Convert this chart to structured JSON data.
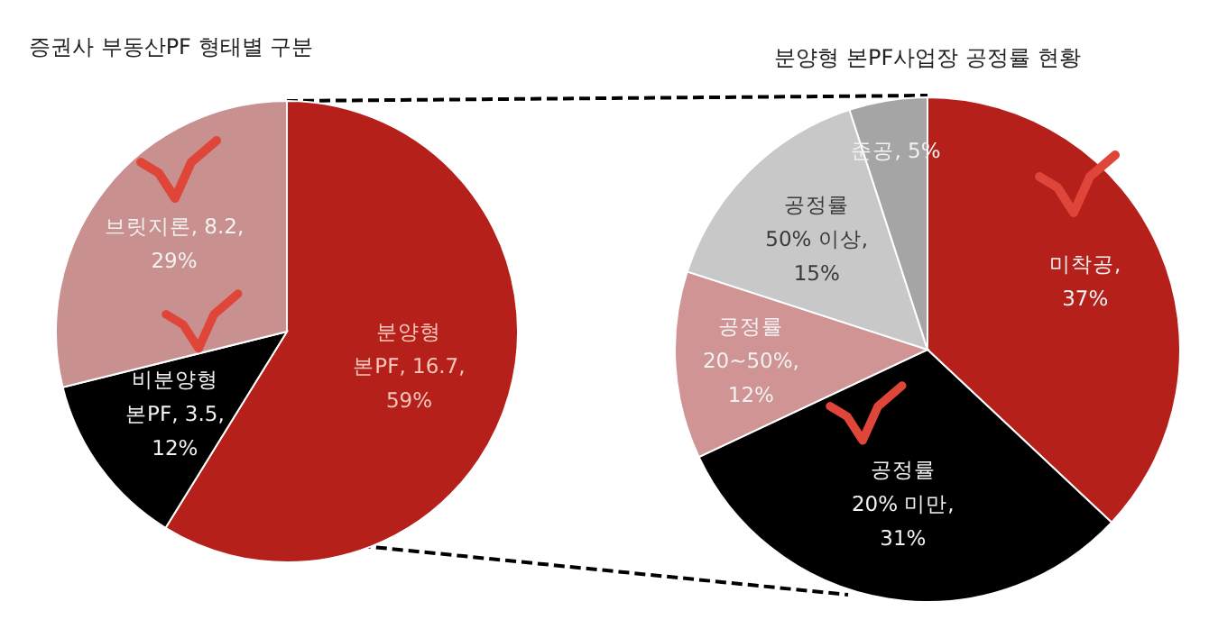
{
  "chart_data": [
    {
      "type": "pie",
      "title": "증권사 부동산PF 형태별 구분",
      "categories": [
        "분양형 본PF",
        "비분양형 본PF",
        "브릿지론"
      ],
      "values": [
        16.7,
        3.5,
        8.2
      ],
      "colors": [
        "#b5201a",
        "#000000",
        "#c99090"
      ],
      "value_labels": [
        ", 16.7, 59%",
        ", 3.5, 12%",
        ", 8.2, 29%"
      ]
    },
    {
      "type": "pie",
      "title": "분양형 본PF사업장 공정률 현황",
      "categories": [
        "미착공",
        "공정률 20% 미만",
        "공정률 20~50%",
        "공정률 50% 이상",
        "준공"
      ],
      "values": [
        37,
        31,
        12,
        15,
        5
      ],
      "colors": [
        "#b5201a",
        "#000000",
        "#d09494",
        "#c8c8c8",
        "#a5a5a5"
      ],
      "value_labels": [
        ", 37%",
        ", 31%",
        ", 12%",
        ", 15%",
        ", 5%"
      ]
    }
  ]
}
